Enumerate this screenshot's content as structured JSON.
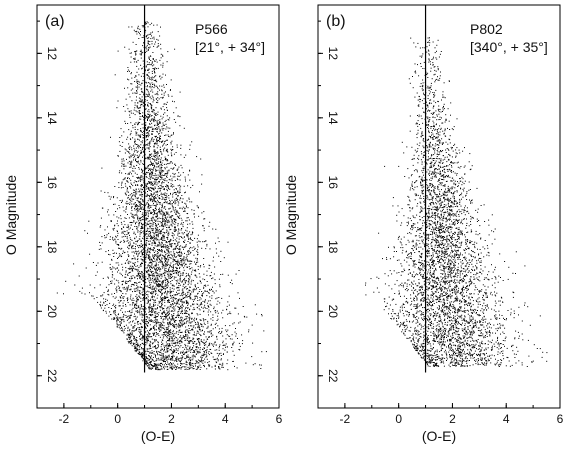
{
  "chart_data": [
    {
      "type": "scatter",
      "panel_label": "(a)",
      "field": "P566",
      "coords": "[21°, + 34°]",
      "xlabel": "(O-E)",
      "ylabel": "O Magnitude",
      "xlim": [
        -3,
        6
      ],
      "ylim": [
        23,
        10.5
      ],
      "y_inverted": true,
      "xticks": [
        "-2",
        "0",
        "2",
        "4",
        "6"
      ],
      "yticks": [
        "12",
        "14",
        "16",
        "18",
        "20",
        "22"
      ],
      "vline_x": 1.0,
      "grid": false,
      "point_color": "#000000",
      "magnitude_limit": 21.8,
      "density_profile": [
        {
          "mag": 11.0,
          "color": 1.05,
          "spread": 0.25,
          "relative_density": 0.1
        },
        {
          "mag": 12.5,
          "color": 1.1,
          "spread": 0.35,
          "relative_density": 0.18
        },
        {
          "mag": 14.0,
          "color": 1.15,
          "spread": 0.45,
          "relative_density": 0.3
        },
        {
          "mag": 15.5,
          "color": 1.25,
          "spread": 0.6,
          "relative_density": 0.5
        },
        {
          "mag": 17.0,
          "color": 1.35,
          "spread": 0.8,
          "relative_density": 0.7
        },
        {
          "mag": 18.5,
          "color": 1.5,
          "spread": 1.0,
          "relative_density": 0.9
        },
        {
          "mag": 20.0,
          "color": 1.7,
          "spread": 1.2,
          "relative_density": 1.0
        },
        {
          "mag": 21.5,
          "color": 2.1,
          "spread": 1.2,
          "relative_density": 1.0
        }
      ]
    },
    {
      "type": "scatter",
      "panel_label": "(b)",
      "field": "P802",
      "coords": "[340°, + 35°]",
      "xlabel": "(O-E)",
      "ylabel": "O Magnitude",
      "xlim": [
        -3,
        6
      ],
      "ylim": [
        23,
        10.5
      ],
      "y_inverted": true,
      "xticks": [
        "-2",
        "0",
        "2",
        "4",
        "6"
      ],
      "yticks": [
        "12",
        "14",
        "16",
        "18",
        "20",
        "22"
      ],
      "vline_x": 1.0,
      "grid": false,
      "point_color": "#000000",
      "magnitude_limit": 21.7,
      "density_profile": [
        {
          "mag": 11.5,
          "color": 1.1,
          "spread": 0.25,
          "relative_density": 0.05
        },
        {
          "mag": 13.0,
          "color": 1.2,
          "spread": 0.3,
          "relative_density": 0.1
        },
        {
          "mag": 14.5,
          "color": 1.3,
          "spread": 0.4,
          "relative_density": 0.2
        },
        {
          "mag": 16.0,
          "color": 1.5,
          "spread": 0.55,
          "relative_density": 0.4
        },
        {
          "mag": 17.5,
          "color": 1.6,
          "spread": 0.7,
          "relative_density": 0.6
        },
        {
          "mag": 19.0,
          "color": 1.7,
          "spread": 0.95,
          "relative_density": 0.75
        },
        {
          "mag": 20.5,
          "color": 1.9,
          "spread": 1.15,
          "relative_density": 0.85
        },
        {
          "mag": 21.5,
          "color": 2.1,
          "spread": 1.2,
          "relative_density": 0.85
        }
      ]
    }
  ]
}
